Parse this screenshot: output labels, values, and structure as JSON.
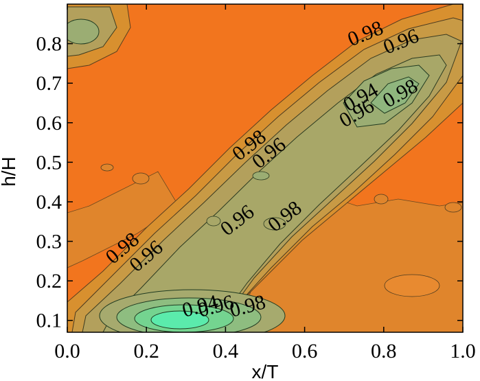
{
  "chart_data": {
    "type": "contour",
    "xlabel": "x/T",
    "ylabel": "h/H",
    "xlim": [
      0.0,
      1.0
    ],
    "ylim": [
      0.07,
      0.9
    ],
    "x_ticks": [
      "0.0",
      "0.2",
      "0.4",
      "0.6",
      "0.8",
      "1.0"
    ],
    "y_ticks": [
      "0.1",
      "0.2",
      "0.3",
      "0.4",
      "0.5",
      "0.6",
      "0.7",
      "0.8"
    ],
    "x_tick_values": [
      0.0,
      0.2,
      0.4,
      0.6,
      0.8,
      1.0
    ],
    "y_tick_values": [
      0.1,
      0.2,
      0.3,
      0.4,
      0.5,
      0.6,
      0.7,
      0.8
    ],
    "grid": false,
    "colors": {
      "high": "#f2751e",
      "mid_high": "#e08a36",
      "mid": "#c39a52",
      "mid_low": "#a9a86a",
      "low": "#86c688",
      "lowest": "#52f0aa"
    },
    "contour_labels": [
      {
        "text": "0.98",
        "x": 0.76,
        "y": 0.81,
        "angle": -22
      },
      {
        "text": "0.96",
        "x": 0.85,
        "y": 0.79,
        "angle": -22
      },
      {
        "text": "0.94",
        "x": 0.75,
        "y": 0.65,
        "angle": -30
      },
      {
        "text": "0.96",
        "x": 0.74,
        "y": 0.61,
        "angle": -30
      },
      {
        "text": "0.98",
        "x": 0.85,
        "y": 0.66,
        "angle": -30
      },
      {
        "text": "0.98",
        "x": 0.47,
        "y": 0.53,
        "angle": -38
      },
      {
        "text": "0.96",
        "x": 0.52,
        "y": 0.51,
        "angle": -38
      },
      {
        "text": "0.96",
        "x": 0.44,
        "y": 0.34,
        "angle": -38
      },
      {
        "text": "0.98",
        "x": 0.56,
        "y": 0.35,
        "angle": -38
      },
      {
        "text": "0.98",
        "x": 0.15,
        "y": 0.27,
        "angle": -40
      },
      {
        "text": "0.96",
        "x": 0.21,
        "y": 0.25,
        "angle": -40
      },
      {
        "text": "0.94",
        "x": 0.34,
        "y": 0.12,
        "angle": -15
      },
      {
        "text": "0.96",
        "x": 0.38,
        "y": 0.12,
        "angle": -15
      },
      {
        "text": "0.98",
        "x": 0.46,
        "y": 0.12,
        "angle": -15
      }
    ]
  }
}
